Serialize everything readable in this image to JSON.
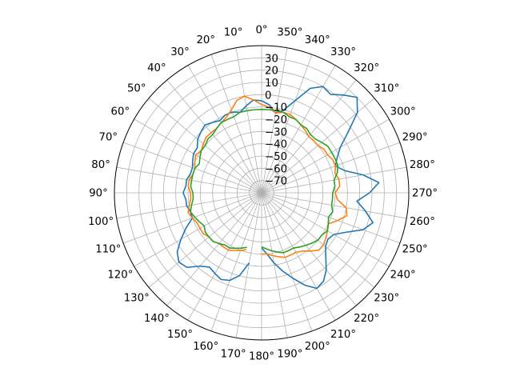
{
  "chart_data": {
    "type": "line",
    "projection": "polar",
    "theta_zero_location": "N",
    "theta_direction": "counterclockwise",
    "theta_ticks": [
      "0°",
      "10°",
      "20°",
      "30°",
      "40°",
      "50°",
      "60°",
      "70°",
      "80°",
      "90°",
      "100°",
      "110°",
      "120°",
      "130°",
      "140°",
      "150°",
      "160°",
      "170°",
      "180°",
      "190°",
      "200°",
      "210°",
      "220°",
      "230°",
      "240°",
      "250°",
      "260°",
      "270°",
      "280°",
      "290°",
      "300°",
      "310°",
      "320°",
      "330°",
      "340°",
      "350°"
    ],
    "r_ticks": [
      30,
      20,
      10,
      0,
      -10,
      -20,
      -30,
      -40,
      -50,
      -60,
      -70
    ],
    "r_tick_labels": [
      "30",
      "20",
      "10",
      "0",
      "−10",
      "−20",
      "−30",
      "−40",
      "−50",
      "−60",
      "−70"
    ],
    "rlim": [
      -80,
      40
    ],
    "grid": true,
    "series": [
      {
        "color": "#1f77b4",
        "points": [
          [
            180,
            -35
          ],
          [
            185,
            -30
          ],
          [
            190,
            -22
          ],
          [
            195,
            -14
          ],
          [
            200,
            -6
          ],
          [
            205,
            3
          ],
          [
            210,
            10
          ],
          [
            215,
            8
          ],
          [
            220,
            2
          ],
          [
            225,
            -6
          ],
          [
            230,
            -12
          ],
          [
            235,
            -14
          ],
          [
            240,
            -12
          ],
          [
            245,
            -4
          ],
          [
            250,
            8
          ],
          [
            255,
            14
          ],
          [
            260,
            6
          ],
          [
            265,
            -2
          ],
          [
            270,
            8
          ],
          [
            275,
            16
          ],
          [
            280,
            4
          ],
          [
            285,
            -10
          ],
          [
            290,
            -16
          ],
          [
            295,
            -12
          ],
          [
            300,
            -6
          ],
          [
            305,
            6
          ],
          [
            310,
            22
          ],
          [
            315,
            30
          ],
          [
            320,
            24
          ],
          [
            325,
            18
          ],
          [
            330,
            20
          ],
          [
            335,
            14
          ],
          [
            340,
            0
          ],
          [
            345,
            -10
          ],
          [
            350,
            -14
          ],
          [
            355,
            -8
          ],
          [
            0,
            -5
          ],
          [
            5,
            -4
          ],
          [
            10,
            -8
          ],
          [
            15,
            -12
          ],
          [
            20,
            -10
          ],
          [
            25,
            -10
          ],
          [
            30,
            -12
          ],
          [
            35,
            -10
          ],
          [
            40,
            -8
          ],
          [
            45,
            -10
          ],
          [
            50,
            -12
          ],
          [
            55,
            -16
          ],
          [
            60,
            -16
          ],
          [
            65,
            -18
          ],
          [
            70,
            -20
          ],
          [
            75,
            -20
          ],
          [
            80,
            -18
          ],
          [
            85,
            -18
          ],
          [
            90,
            -16
          ],
          [
            95,
            -18
          ],
          [
            100,
            -18
          ],
          [
            105,
            -20
          ],
          [
            110,
            -20
          ],
          [
            115,
            -12
          ],
          [
            120,
            -4
          ],
          [
            125,
            4
          ],
          [
            130,
            8
          ],
          [
            135,
            6
          ],
          [
            140,
            -2
          ],
          [
            145,
            -6
          ],
          [
            150,
            -4
          ],
          [
            155,
            -2
          ],
          [
            160,
            -4
          ],
          [
            165,
            -10
          ],
          [
            170,
            -22
          ]
        ]
      },
      {
        "color": "#ff7f0e",
        "points": [
          [
            180,
            -30
          ],
          [
            185,
            -30
          ],
          [
            190,
            -28
          ],
          [
            195,
            -26
          ],
          [
            200,
            -24
          ],
          [
            205,
            -24
          ],
          [
            210,
            -24
          ],
          [
            215,
            -22
          ],
          [
            220,
            -18
          ],
          [
            225,
            -14
          ],
          [
            230,
            -14
          ],
          [
            235,
            -16
          ],
          [
            240,
            -18
          ],
          [
            245,
            -20
          ],
          [
            250,
            -14
          ],
          [
            255,
            -8
          ],
          [
            260,
            -10
          ],
          [
            265,
            -18
          ],
          [
            270,
            -20
          ],
          [
            275,
            -16
          ],
          [
            280,
            -16
          ],
          [
            285,
            -18
          ],
          [
            290,
            -16
          ],
          [
            295,
            -16
          ],
          [
            300,
            -18
          ],
          [
            305,
            -18
          ],
          [
            310,
            -20
          ],
          [
            315,
            -20
          ],
          [
            320,
            -20
          ],
          [
            325,
            -18
          ],
          [
            330,
            -16
          ],
          [
            335,
            -14
          ],
          [
            340,
            -12
          ],
          [
            345,
            -12
          ],
          [
            350,
            -14
          ],
          [
            355,
            -10
          ],
          [
            0,
            -8
          ],
          [
            5,
            -4
          ],
          [
            10,
            0
          ],
          [
            15,
            -2
          ],
          [
            20,
            -8
          ],
          [
            25,
            -12
          ],
          [
            30,
            -14
          ],
          [
            35,
            -16
          ],
          [
            40,
            -16
          ],
          [
            45,
            -16
          ],
          [
            50,
            -18
          ],
          [
            55,
            -20
          ],
          [
            60,
            -18
          ],
          [
            65,
            -20
          ],
          [
            70,
            -22
          ],
          [
            75,
            -22
          ],
          [
            80,
            -20
          ],
          [
            85,
            -20
          ],
          [
            90,
            -22
          ],
          [
            95,
            -22
          ],
          [
            100,
            -20
          ],
          [
            105,
            -18
          ],
          [
            110,
            -20
          ],
          [
            115,
            -22
          ],
          [
            120,
            -22
          ],
          [
            125,
            -22
          ],
          [
            130,
            -24
          ],
          [
            135,
            -24
          ],
          [
            140,
            -26
          ],
          [
            145,
            -26
          ],
          [
            150,
            -26
          ],
          [
            155,
            -28
          ],
          [
            160,
            -30
          ],
          [
            165,
            -32
          ]
        ]
      },
      {
        "color": "#2ca02c",
        "points": [
          [
            180,
            -36
          ],
          [
            185,
            -34
          ],
          [
            190,
            -32
          ],
          [
            195,
            -30
          ],
          [
            200,
            -28
          ],
          [
            205,
            -28
          ],
          [
            210,
            -28
          ],
          [
            215,
            -26
          ],
          [
            220,
            -24
          ],
          [
            225,
            -22
          ],
          [
            230,
            -20
          ],
          [
            235,
            -20
          ],
          [
            240,
            -18
          ],
          [
            245,
            -20
          ],
          [
            250,
            -22
          ],
          [
            255,
            -20
          ],
          [
            260,
            -22
          ],
          [
            265,
            -22
          ],
          [
            270,
            -22
          ],
          [
            275,
            -20
          ],
          [
            280,
            -20
          ],
          [
            285,
            -16
          ],
          [
            290,
            -14
          ],
          [
            295,
            -14
          ],
          [
            300,
            -14
          ],
          [
            305,
            -14
          ],
          [
            310,
            -16
          ],
          [
            315,
            -18
          ],
          [
            320,
            -18
          ],
          [
            325,
            -16
          ],
          [
            330,
            -16
          ],
          [
            335,
            -14
          ],
          [
            340,
            -14
          ],
          [
            345,
            -12
          ],
          [
            350,
            -12
          ],
          [
            355,
            -12
          ],
          [
            0,
            -12
          ],
          [
            5,
            -12
          ],
          [
            10,
            -12
          ],
          [
            15,
            -12
          ],
          [
            20,
            -14
          ],
          [
            25,
            -14
          ],
          [
            30,
            -14
          ],
          [
            35,
            -16
          ],
          [
            40,
            -18
          ],
          [
            45,
            -18
          ],
          [
            50,
            -20
          ],
          [
            55,
            -20
          ],
          [
            60,
            -22
          ],
          [
            65,
            -24
          ],
          [
            70,
            -22
          ],
          [
            75,
            -22
          ],
          [
            80,
            -22
          ],
          [
            85,
            -22
          ],
          [
            90,
            -24
          ],
          [
            95,
            -24
          ],
          [
            100,
            -22
          ],
          [
            105,
            -20
          ],
          [
            110,
            -22
          ],
          [
            115,
            -24
          ],
          [
            120,
            -26
          ],
          [
            125,
            -24
          ],
          [
            130,
            -24
          ],
          [
            135,
            -24
          ],
          [
            140,
            -26
          ],
          [
            145,
            -28
          ],
          [
            150,
            -28
          ],
          [
            155,
            -30
          ],
          [
            160,
            -32
          ],
          [
            165,
            -34
          ]
        ]
      }
    ]
  }
}
